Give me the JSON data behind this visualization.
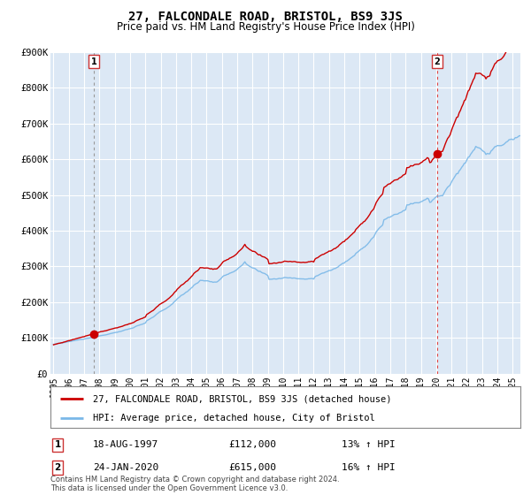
{
  "title": "27, FALCONDALE ROAD, BRISTOL, BS9 3JS",
  "subtitle": "Price paid vs. HM Land Registry's House Price Index (HPI)",
  "hpi_label": "HPI: Average price, detached house, City of Bristol",
  "property_label": "27, FALCONDALE ROAD, BRISTOL, BS9 3JS (detached house)",
  "sale1_date": "18-AUG-1997",
  "sale1_price": 112000,
  "sale1_hpi": "13% ↑ HPI",
  "sale1_year": 1997.63,
  "sale2_date": "24-JAN-2020",
  "sale2_price": 615000,
  "sale2_hpi": "16% ↑ HPI",
  "sale2_year": 2020.07,
  "ylim_min": 0,
  "ylim_max": 900000,
  "xlim_min": 1994.8,
  "xlim_max": 2025.5,
  "hpi_color": "#7ab8e8",
  "property_color": "#cc0000",
  "sale1_vline_color": "#aaaaaa",
  "sale2_vline_color": "#dd4444",
  "plot_bg": "#dce8f5",
  "grid_color": "#ffffff",
  "footer": "Contains HM Land Registry data © Crown copyright and database right 2024.\nThis data is licensed under the Open Government Licence v3.0."
}
